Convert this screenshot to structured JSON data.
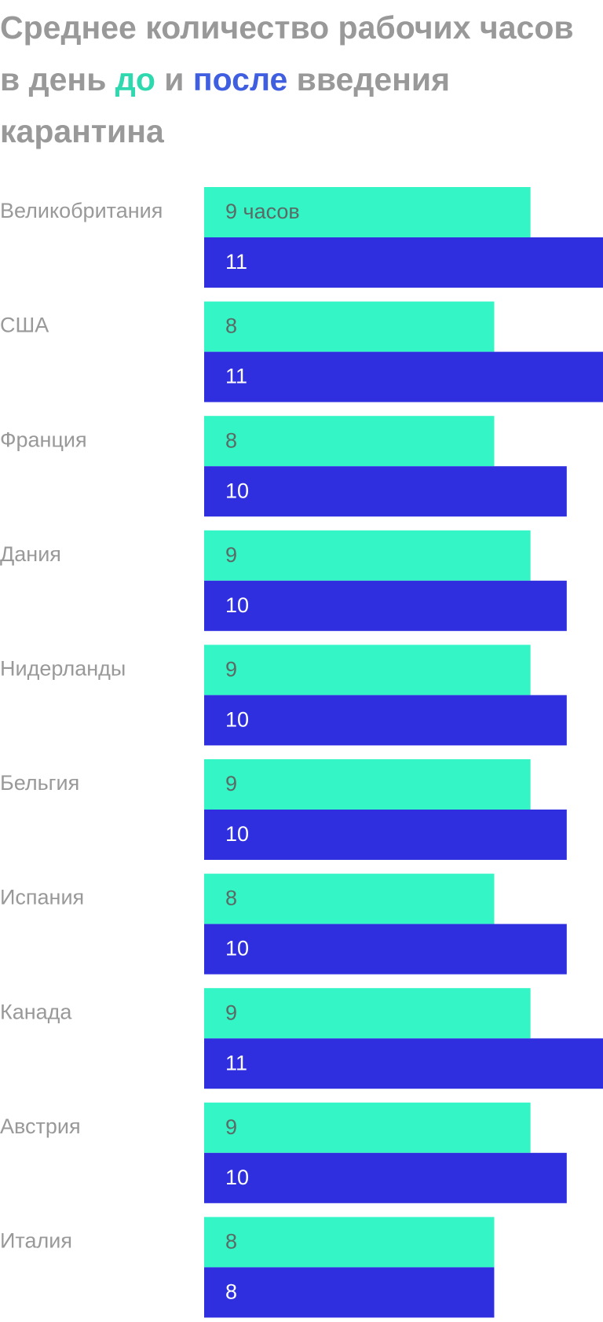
{
  "title": {
    "part1": "Среднее количество рабочих часов в день ",
    "before_word": "до",
    "part2": " и ",
    "after_word": "после",
    "part3": " введения карантина"
  },
  "colors": {
    "before": "#33f5c6",
    "after": "#2f2fe0",
    "title": "#999999",
    "label": "#999999"
  },
  "chart_data": {
    "type": "bar",
    "orientation": "horizontal",
    "title": "Среднее количество рабочих часов в день до и после введения карантина",
    "categories": [
      "Великобритания",
      "США",
      "Франция",
      "Дания",
      "Нидерланды",
      "Бельгия",
      "Испания",
      "Канада",
      "Австрия",
      "Италия"
    ],
    "series": [
      {
        "name": "до",
        "color": "#33f5c6",
        "values": [
          9,
          8,
          8,
          9,
          9,
          9,
          8,
          9,
          9,
          8
        ]
      },
      {
        "name": "после",
        "color": "#2f2fe0",
        "values": [
          11,
          11,
          10,
          10,
          10,
          10,
          10,
          11,
          10,
          8
        ]
      }
    ],
    "first_label_suffix": " часов",
    "xlim": [
      0,
      11
    ],
    "grid": false,
    "legend": "none"
  }
}
